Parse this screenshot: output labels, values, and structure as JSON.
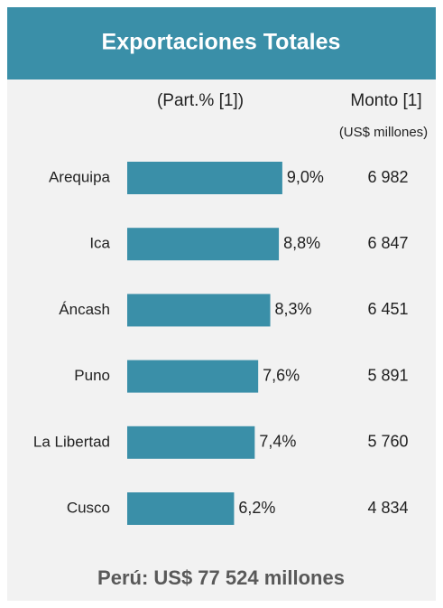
{
  "chart_data": {
    "type": "bar",
    "orientation": "horizontal",
    "title": "Exportaciones Totales",
    "share_header": "(Part.% [1])",
    "amount_header": "Monto [1]",
    "amount_unit": "(US$ millones)",
    "categories": [
      "Arequipa",
      "Ica",
      "Áncash",
      "Puno",
      "La Libertad",
      "Cusco"
    ],
    "values": [
      9.0,
      8.8,
      8.3,
      7.6,
      7.4,
      6.2
    ],
    "value_labels": [
      "9,0%",
      "8,8%",
      "8,3%",
      "7,6%",
      "7,4%",
      "6,2%"
    ],
    "amounts": [
      "6 982",
      "6 847",
      "6 451",
      "5 891",
      "5 760",
      "4 834"
    ],
    "color": "#3a8fa8",
    "footer": "Perú: US$ 77 524 millones"
  }
}
